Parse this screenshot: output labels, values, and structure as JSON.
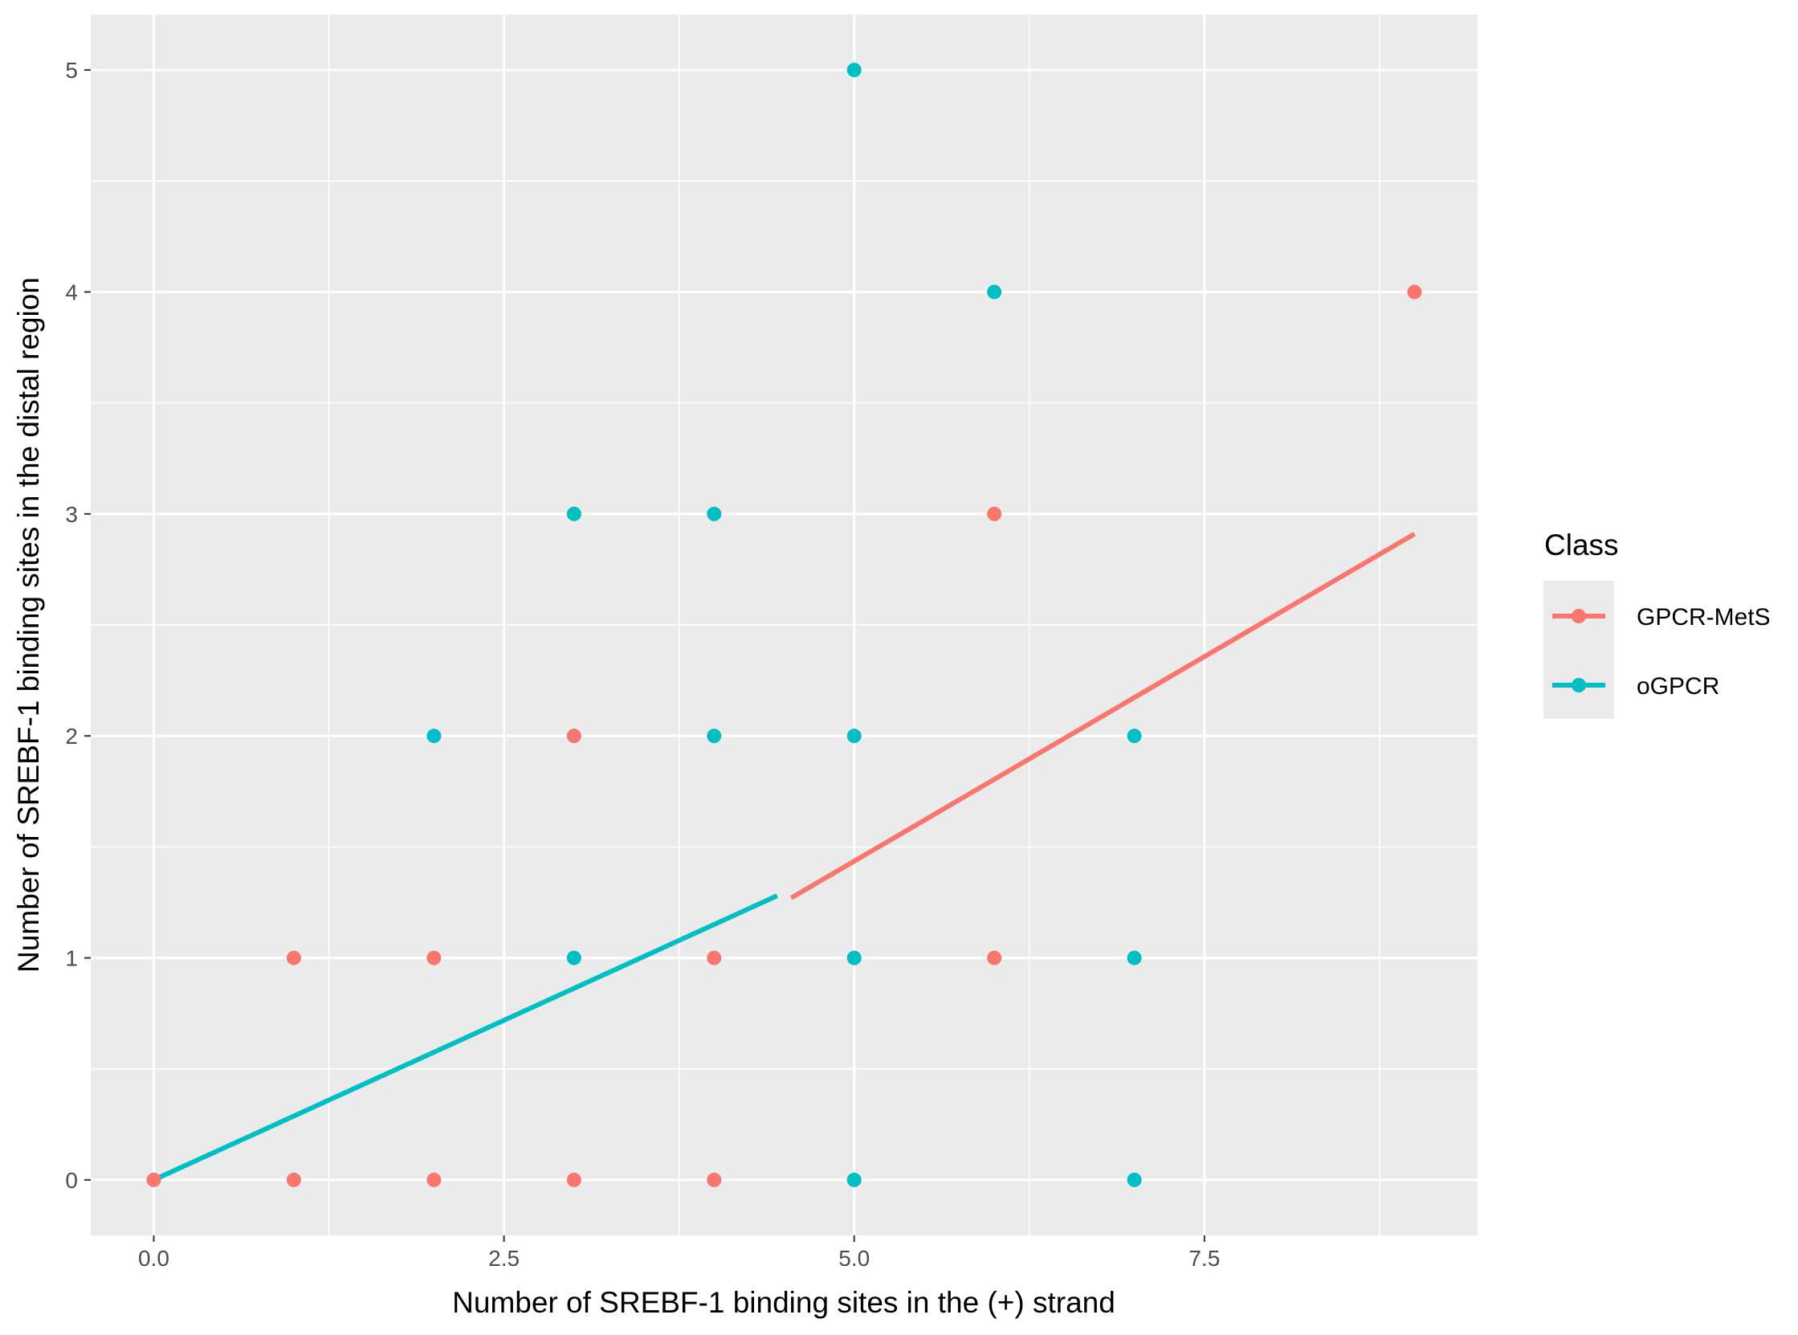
{
  "chart_data": {
    "type": "scatter",
    "xlabel": "Number of SREBF-1 binding sites in the (+) strand",
    "ylabel": "Number of SREBF-1 binding sites in the distal region",
    "xlim": [
      -0.45,
      9.45
    ],
    "ylim": [
      -0.25,
      5.25
    ],
    "x_ticks": [
      0.0,
      2.5,
      5.0,
      7.5
    ],
    "x_tick_labels": [
      "0.0",
      "2.5",
      "5.0",
      "7.5"
    ],
    "y_ticks": [
      0,
      1,
      2,
      3,
      4,
      5
    ],
    "y_tick_labels": [
      "0",
      "1",
      "2",
      "3",
      "4",
      "5"
    ],
    "grid": true,
    "panel_background": "#ebebeb",
    "grid_color": "#ffffff",
    "legend": {
      "title": "Class",
      "position": "right"
    },
    "series": [
      {
        "name": "GPCR-MetS",
        "color": "#f8766d",
        "points": [
          {
            "x": 0,
            "y": 0
          },
          {
            "x": 1,
            "y": 0
          },
          {
            "x": 2,
            "y": 0
          },
          {
            "x": 3,
            "y": 0
          },
          {
            "x": 4,
            "y": 0
          },
          {
            "x": 1,
            "y": 1
          },
          {
            "x": 2,
            "y": 1
          },
          {
            "x": 4,
            "y": 1
          },
          {
            "x": 6,
            "y": 1
          },
          {
            "x": 3,
            "y": 2
          },
          {
            "x": 6,
            "y": 3
          },
          {
            "x": 9,
            "y": 4
          }
        ],
        "trend_line": {
          "x": [
            4.55,
            9.0
          ],
          "y": [
            1.27,
            2.91
          ]
        }
      },
      {
        "name": "oGPCR",
        "color": "#00bfc4",
        "points": [
          {
            "x": 5,
            "y": 0
          },
          {
            "x": 7,
            "y": 0
          },
          {
            "x": 3,
            "y": 1
          },
          {
            "x": 5,
            "y": 1
          },
          {
            "x": 7,
            "y": 1
          },
          {
            "x": 2,
            "y": 2
          },
          {
            "x": 4,
            "y": 2
          },
          {
            "x": 5,
            "y": 2
          },
          {
            "x": 7,
            "y": 2
          },
          {
            "x": 3,
            "y": 3
          },
          {
            "x": 4,
            "y": 3
          },
          {
            "x": 6,
            "y": 4
          },
          {
            "x": 5,
            "y": 5
          }
        ],
        "trend_line": {
          "x": [
            0.0,
            4.45
          ],
          "y": [
            0.0,
            1.28
          ]
        }
      }
    ]
  }
}
